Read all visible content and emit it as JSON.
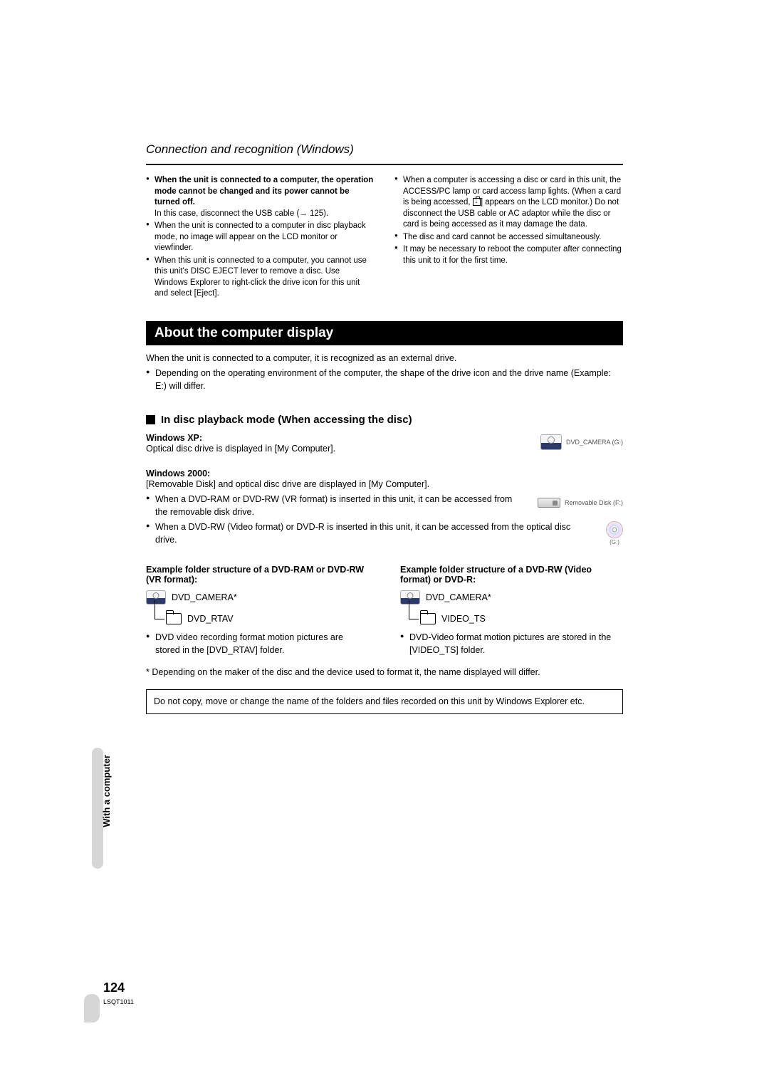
{
  "section_title": "Connection and recognition (Windows)",
  "left_bullets": {
    "b1_bold": "When the unit is connected to a computer, the operation mode cannot be changed and its power cannot be turned off.",
    "b1_sub": "In this case, disconnect the USB cable",
    "b2": "When the unit is connected to a computer in disc playback mode, no image will appear on the LCD monitor or viewfinder.",
    "b3": "When this unit is connected to a computer, you cannot use this unit's DISC EJECT lever to remove a disc. Use Windows Explorer to right-click the drive icon for this unit and select [Eject]."
  },
  "right_bullets": {
    "b1_pre": "When a computer is accessing a disc or card in this unit, the ACCESS/PC lamp or card access lamp lights. (When a card is being accessed, ",
    "b1_post": " appears on the LCD monitor.) Do not disconnect the USB cable or AC adaptor while the disc or card is being accessed as it may damage the data.",
    "b2": "The disc and card cannot be accessed simultaneously.",
    "b3": "It may be necessary to reboot the computer after connecting this unit to it for the first time."
  },
  "band": "About the computer display",
  "band_body1": "When the unit is connected to a computer, it is recognized as an external drive.",
  "band_body2": "Depending on the operating environment of the computer, the shape of the drive icon and the drive name (Example: E:) will differ.",
  "subheading": "In disc playback mode (When accessing the disc)",
  "xp_label": "Windows XP:",
  "xp_text": "Optical disc drive is displayed in [My Computer].",
  "xp_drive_label": "DVD_CAMERA (G:)",
  "w2k_label": "Windows 2000:",
  "w2k_text1": "[Removable Disk] and optical disc drive are displayed in [My Computer].",
  "w2k_b1": "When a DVD-RAM or DVD-RW (VR format) is inserted in this unit, it can be accessed from the removable disk drive.",
  "w2k_b2": "When a DVD-RW (Video format) or DVD-R is inserted in this unit, it can be accessed from the optical disc drive.",
  "w2k_drive_label": "Removable Disk (F:)",
  "w2k_cd_label": "(G:)",
  "ex1_title": "Example folder structure of a DVD-RAM or DVD-RW (VR format):",
  "ex1_root": "DVD_CAMERA*",
  "ex1_child": "DVD_RTAV",
  "ex1_bullet": "DVD video recording format motion pictures are stored in the [DVD_RTAV] folder.",
  "ex2_title": "Example folder structure of a DVD-RW (Video format) or DVD-R:",
  "ex2_root": "DVD_CAMERA*",
  "ex2_child": "VIDEO_TS",
  "ex2_bullet": "DVD-Video format motion pictures are stored in the [VIDEO_TS] folder.",
  "footnote": "*  Depending on the maker of the disc and the device used to format it, the name displayed will differ.",
  "note_box": "Do not copy, move or change the name of the folders and files recorded on this unit by Windows Explorer etc.",
  "side_tab": "With a computer",
  "page_num": "124",
  "page_code": "LSQT1011"
}
